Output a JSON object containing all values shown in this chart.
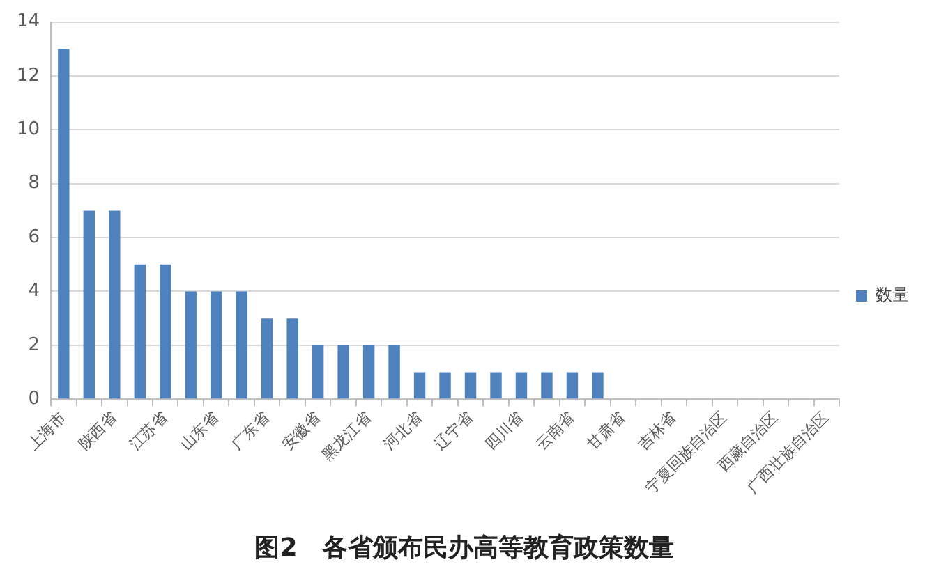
{
  "chart_data": {
    "type": "bar",
    "title": "图2　各省颁布民办高等教育政策数量",
    "categories": [
      "上海市",
      null,
      "陕西省",
      null,
      "江苏省",
      null,
      "山东省",
      null,
      "广东省",
      null,
      "安徽省",
      null,
      "黑龙江省",
      null,
      "河北省",
      null,
      "辽宁省",
      null,
      "四川省",
      null,
      "云南省",
      null,
      "甘肃省",
      null,
      "吉林省",
      null,
      "宁夏回族自治区",
      null,
      "西藏自治区",
      null,
      "广西壮族自治区"
    ],
    "series": [
      {
        "name": "数量",
        "color": "#4f81bd",
        "values": [
          13,
          7,
          7,
          5,
          5,
          4,
          4,
          4,
          3,
          3,
          2,
          2,
          2,
          2,
          1,
          1,
          1,
          1,
          1,
          1,
          1,
          1,
          0,
          0,
          0,
          0,
          0,
          0,
          0,
          0,
          0
        ]
      }
    ],
    "ylim": [
      0,
      14
    ],
    "yticks": [
      0,
      2,
      4,
      6,
      8,
      10,
      12,
      14
    ],
    "grid": "y",
    "legend": "right"
  }
}
